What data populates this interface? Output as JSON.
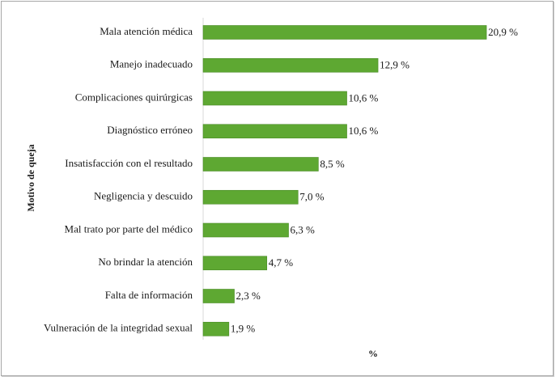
{
  "chart_data": {
    "type": "bar",
    "orientation": "horizontal",
    "categories": [
      "Mala atención médica",
      "Manejo inadecuado",
      "Complicaciones quirúrgicas",
      "Diagnóstico erróneo",
      "Insatisfacción con el resultado",
      "Negligencia y descuido",
      "Mal trato por parte del médico",
      "No brindar la atención",
      "Falta de información",
      "Vulneración de la integridad sexual"
    ],
    "values": [
      20.9,
      12.9,
      10.6,
      10.6,
      8.5,
      7.0,
      6.3,
      4.7,
      2.3,
      1.9
    ],
    "value_labels": [
      "20,9 %",
      "12,9 %",
      "10,6 %",
      "10,6 %",
      "8,5 %",
      "7,0 %",
      "6,3 %",
      "4,7 %",
      "2,3 %",
      "1,9 %"
    ],
    "xlabel": "%",
    "ylabel": "Motivo de queja",
    "xlim": [
      0,
      22
    ],
    "grid": false,
    "bar_color": "#5ea832",
    "bar_border_color": "#4a8a26"
  }
}
